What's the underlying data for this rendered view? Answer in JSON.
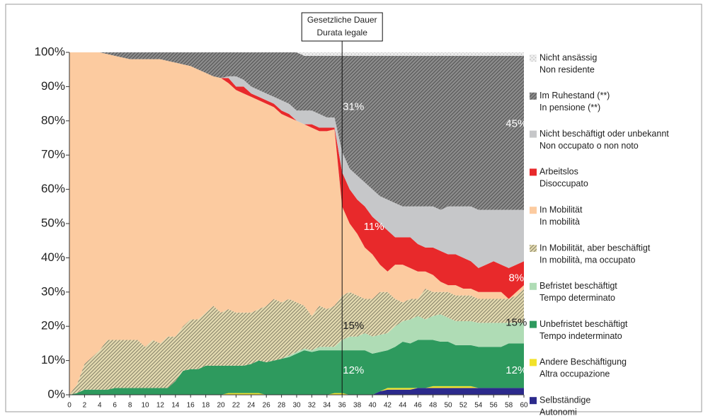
{
  "chart_data": {
    "type": "stacked_area",
    "x": [
      0,
      1,
      2,
      3,
      4,
      5,
      6,
      7,
      8,
      9,
      10,
      11,
      12,
      13,
      14,
      15,
      16,
      17,
      18,
      19,
      20,
      21,
      22,
      23,
      24,
      25,
      26,
      27,
      28,
      29,
      30,
      31,
      32,
      33,
      34,
      35,
      36,
      37,
      38,
      39,
      40,
      41,
      42,
      43,
      44,
      45,
      46,
      47,
      48,
      49,
      50,
      51,
      52,
      53,
      54,
      55,
      56,
      57,
      58,
      59,
      60
    ],
    "xlim": [
      0,
      60
    ],
    "xticks": [
      0,
      2,
      4,
      6,
      8,
      10,
      12,
      14,
      16,
      18,
      20,
      22,
      24,
      26,
      28,
      30,
      32,
      34,
      36,
      38,
      40,
      42,
      44,
      46,
      48,
      50,
      52,
      54,
      56,
      58,
      60
    ],
    "ylim": [
      0,
      100
    ],
    "yticks": [
      {
        "value": 0,
        "label": "0%"
      },
      {
        "value": 10,
        "label": "10%"
      },
      {
        "value": 20,
        "label": "20%"
      },
      {
        "value": 30,
        "label": "30%"
      },
      {
        "value": 40,
        "label": "40%"
      },
      {
        "value": 50,
        "label": "50%"
      },
      {
        "value": 60,
        "label": "60%"
      },
      {
        "value": 70,
        "label": "70%"
      },
      {
        "value": 80,
        "label": "80%"
      },
      {
        "value": 90,
        "label": "90%"
      },
      {
        "value": 100,
        "label": "100%"
      }
    ],
    "marker": {
      "x": 36,
      "label": [
        "Gesetzliche Dauer",
        "Durata legale"
      ]
    },
    "annotations": [
      "31%",
      "45%",
      "11%",
      "8%",
      "15%",
      "15%",
      "12%",
      "12%"
    ],
    "series": [
      {
        "name": [
          "Nicht ansässig",
          "Non residente"
        ],
        "color": "#eeeeee",
        "pattern": "dots",
        "values": [
          0,
          0,
          0,
          0,
          0,
          0,
          0,
          0,
          0,
          0,
          0,
          0,
          0,
          0,
          0,
          0,
          0,
          0,
          0,
          0,
          0,
          0,
          0,
          0,
          0,
          0,
          0,
          0,
          0,
          0,
          0,
          1,
          1,
          1,
          1,
          1,
          1,
          1,
          1,
          1,
          1,
          1,
          1,
          1,
          1,
          1,
          1,
          1,
          1,
          1,
          1,
          1,
          1,
          1,
          1,
          1,
          1,
          1,
          1,
          1,
          1
        ]
      },
      {
        "name": [
          "Im Ruhestand (**)",
          "In pensione (**)"
        ],
        "color": "#8c8c8c",
        "pattern": "hatch",
        "values": [
          0,
          0,
          0,
          0,
          0,
          0.5,
          1,
          1.5,
          2,
          2,
          2,
          2,
          2,
          2.5,
          3,
          3.5,
          4,
          5,
          6,
          7,
          7.5,
          7,
          7,
          8,
          10,
          11,
          12,
          13,
          14,
          15,
          17,
          16,
          16,
          17,
          18,
          18,
          28,
          33,
          35,
          37,
          39,
          41,
          42,
          43,
          44,
          44,
          44,
          44,
          44,
          45,
          44,
          44,
          44,
          44,
          45,
          45,
          45,
          45,
          45,
          45,
          45
        ]
      },
      {
        "name": [
          "Nicht beschäftigt oder unbekannt",
          "Non occupato o non noto"
        ],
        "color": "#c6c7c9",
        "values": [
          0,
          0,
          0,
          0,
          0,
          0,
          0,
          0,
          0,
          0,
          0,
          0,
          0,
          0,
          0,
          0,
          0,
          0,
          0,
          0,
          0,
          0.5,
          3,
          2,
          2,
          2,
          2,
          2,
          3,
          3,
          3,
          4,
          4,
          4,
          3,
          3,
          6,
          6,
          7,
          7,
          8,
          8,
          9,
          10,
          9,
          9,
          11,
          12,
          12,
          12,
          14,
          14,
          15,
          16,
          17,
          16,
          15,
          16,
          17,
          16,
          15
        ]
      },
      {
        "name": [
          "Arbeitslos",
          "Disoccupato"
        ],
        "color": "#e8292b",
        "values": [
          0,
          0,
          0,
          0,
          0,
          0,
          0,
          0,
          0,
          0,
          0,
          0,
          0,
          0,
          0,
          0,
          0,
          0,
          0,
          0,
          0,
          1.5,
          1,
          2,
          1,
          1,
          1,
          1,
          1,
          1,
          0,
          0,
          1,
          1,
          1,
          0.5,
          10,
          10,
          10,
          12,
          11,
          12,
          12,
          8,
          8,
          9,
          8,
          7,
          8,
          9,
          9,
          9,
          9,
          8,
          7,
          8,
          9,
          8,
          9,
          8,
          7
        ]
      },
      {
        "name": [
          "In Mobilität",
          "In mobilità"
        ],
        "color": "#fccba0",
        "values": [
          100,
          97,
          91,
          89,
          87,
          83.5,
          83,
          82.5,
          82,
          82,
          84,
          82,
          83,
          80.5,
          80,
          76.5,
          74,
          73,
          70,
          67,
          68.5,
          66,
          65,
          64,
          63,
          61,
          59,
          56,
          55,
          53,
          53,
          53,
          55,
          51,
          52,
          51.5,
          26,
          20,
          18,
          15,
          13,
          8,
          6,
          10,
          11,
          9,
          8,
          5,
          5,
          3,
          2,
          3,
          2,
          2,
          2,
          2,
          2,
          2,
          0,
          1,
          1
        ]
      },
      {
        "name": [
          "In Mobilität, aber beschäftigt",
          "In mobilità, ma occupato"
        ],
        "color": "#e3dab0",
        "pattern": "hatch",
        "values": [
          0,
          2.5,
          7.5,
          9.5,
          11.5,
          14.5,
          14,
          14,
          14,
          14,
          12,
          14,
          13,
          15,
          13,
          13,
          14.5,
          14.5,
          15.5,
          17.5,
          15.5,
          16.5,
          15.5,
          15.5,
          15,
          15,
          16.5,
          18,
          16.5,
          16.5,
          14.5,
          12.5,
          10,
          12,
          11,
          12,
          13,
          13,
          12,
          10,
          11,
          12.5,
          12,
          8,
          5.5,
          6,
          5,
          9,
          7,
          6.5,
          7.5,
          7.5,
          7.5,
          7.5,
          7,
          7,
          7,
          7,
          7,
          8,
          10
        ]
      },
      {
        "name": [
          "Befristet beschäftigt",
          "Tempo determinato"
        ],
        "color": "#afdcb5",
        "values": [
          0,
          0,
          0,
          0,
          0,
          0,
          0,
          0,
          0,
          0,
          0,
          0,
          0,
          0,
          0,
          0,
          0,
          0,
          0,
          0,
          0,
          0,
          0,
          0,
          0,
          0,
          0,
          0,
          0,
          0.5,
          0.5,
          0.5,
          0.5,
          1,
          1,
          1,
          3,
          4,
          4,
          5,
          5,
          5,
          5,
          6,
          6,
          7,
          7,
          6,
          7,
          8,
          7,
          7,
          7,
          7,
          7,
          7,
          7,
          7,
          6,
          6,
          6
        ]
      },
      {
        "name": [
          "Unbefristet beschäftigt",
          "Tempo indeterminato"
        ],
        "color": "#2e9a5e",
        "values": [
          0,
          0.5,
          1.5,
          1.5,
          1.5,
          1.5,
          2,
          2,
          2,
          2,
          2,
          2,
          2,
          2,
          4,
          7,
          7.5,
          7.5,
          8.5,
          8.5,
          8.5,
          8,
          8,
          8,
          8.5,
          9.5,
          9.5,
          10,
          10.5,
          11,
          12,
          13,
          12.5,
          13,
          13,
          12.5,
          12.5,
          13,
          13,
          13,
          12,
          11.5,
          11,
          12,
          13.5,
          13,
          14,
          14,
          13.5,
          13,
          13,
          12,
          12,
          12,
          12,
          12,
          12,
          12,
          13,
          13,
          13
        ]
      },
      {
        "name": [
          "Andere Beschäftigung",
          "Altra occupazione"
        ],
        "color": "#f2e22a",
        "values": [
          0,
          0,
          0,
          0,
          0,
          0,
          0,
          0,
          0,
          0,
          0,
          0,
          0,
          0,
          0,
          0,
          0,
          0,
          0,
          0,
          0,
          0.5,
          0.5,
          0.5,
          0.5,
          0.5,
          0,
          0,
          0,
          0,
          0,
          0,
          0,
          0,
          0,
          0.5,
          0.5,
          0,
          0,
          0,
          0,
          0,
          0.5,
          0.5,
          0.5,
          0.5,
          0,
          0,
          0.5,
          0.5,
          0.5,
          0.5,
          0.5,
          0.5,
          0,
          0,
          0,
          0,
          0,
          0,
          0
        ]
      },
      {
        "name": [
          "Selbständige",
          "Autonomi"
        ],
        "color": "#2c2a8c",
        "values": [
          0,
          0,
          0,
          0,
          0,
          0,
          0,
          0,
          0,
          0,
          0,
          0,
          0,
          0,
          0,
          0,
          0,
          0,
          0,
          0,
          0,
          0,
          0,
          0,
          0,
          0,
          0,
          0,
          0,
          0,
          0,
          0,
          0,
          0,
          0,
          0,
          0,
          0,
          0,
          0,
          0,
          1,
          1.5,
          1.5,
          1.5,
          1.5,
          2,
          2,
          2,
          2,
          2,
          2,
          2,
          2,
          2,
          2,
          2,
          2,
          2,
          2,
          2
        ]
      }
    ]
  }
}
